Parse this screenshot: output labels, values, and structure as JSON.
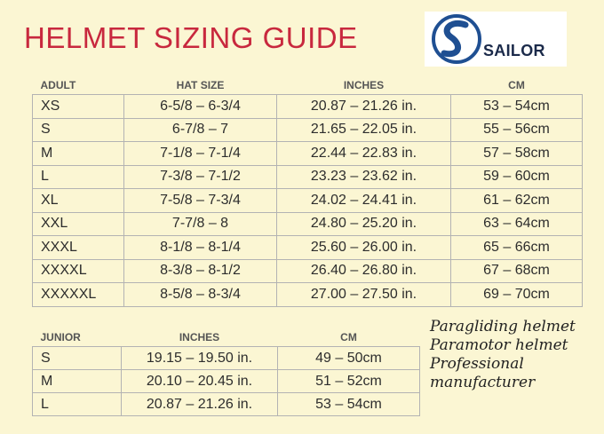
{
  "title": "HELMET SIZING GUIDE",
  "logo": {
    "text": "SAILOR",
    "colors": {
      "mark": "#1f4f92",
      "background": "#ffffff"
    }
  },
  "adult": {
    "headers": [
      "ADULT",
      "HAT SIZE",
      "INCHES",
      "CM"
    ],
    "rows": [
      [
        "XS",
        "6-5/8 – 6-3/4",
        "20.87 – 21.26 in.",
        "53 – 54cm"
      ],
      [
        "S",
        "6-7/8 – 7",
        "21.65 – 22.05 in.",
        "55 – 56cm"
      ],
      [
        "M",
        "7-1/8 – 7-1/4",
        "22.44 – 22.83 in.",
        "57 – 58cm"
      ],
      [
        "L",
        "7-3/8 – 7-1/2",
        "23.23 – 23.62 in.",
        "59 – 60cm"
      ],
      [
        "XL",
        "7-5/8 – 7-3/4",
        "24.02 – 24.41 in.",
        "61 – 62cm"
      ],
      [
        "XXL",
        "7-7/8 – 8",
        "24.80 – 25.20 in.",
        "63 – 64cm"
      ],
      [
        "XXXL",
        "8-1/8 – 8-1/4",
        "25.60 – 26.00 in.",
        "65 – 66cm"
      ],
      [
        "XXXXL",
        "8-3/8 – 8-1/2",
        "26.40 – 26.80 in.",
        "67 – 68cm"
      ],
      [
        "XXXXXL",
        "8-5/8 – 8-3/4",
        "27.00 – 27.50 in.",
        "69 – 70cm"
      ]
    ]
  },
  "junior": {
    "headers": [
      "JUNIOR",
      "INCHES",
      "CM"
    ],
    "rows": [
      [
        "S",
        "19.15 – 19.50 in.",
        "49 – 50cm"
      ],
      [
        "M",
        "20.10 – 20.45 in.",
        "51 – 52cm"
      ],
      [
        "L",
        "20.87 – 21.26 in.",
        "53 – 54cm"
      ]
    ]
  },
  "note": [
    "Paragliding helmet",
    "Paramotor helmet",
    "Professional",
    "manufacturer"
  ],
  "colors": {
    "background": "#fbf6d3",
    "title": "#c8283e",
    "border": "#b3b3b3"
  }
}
